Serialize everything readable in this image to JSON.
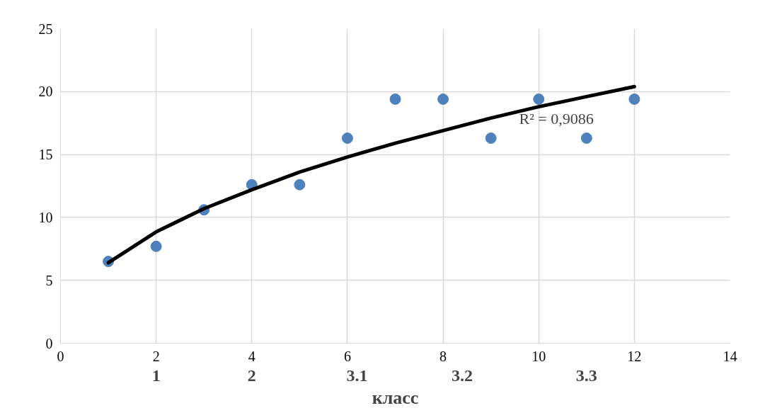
{
  "chart_data": {
    "type": "scatter",
    "xlabel": "класс",
    "xlim": [
      0,
      14
    ],
    "xticks": [
      0,
      2,
      4,
      6,
      8,
      10,
      12,
      14
    ],
    "ylim": [
      0,
      25
    ],
    "yticks": [
      0,
      5,
      10,
      15,
      20,
      25
    ],
    "grid": true,
    "series": [
      {
        "marker": "circle",
        "color": "#4f81bd",
        "x": [
          1,
          2,
          3,
          4,
          5,
          6,
          7,
          8,
          9,
          10,
          11,
          12
        ],
        "values": [
          6.5,
          7.7,
          10.6,
          12.6,
          12.6,
          16.3,
          19.4,
          19.4,
          16.3,
          19.4,
          16.3,
          19.4
        ]
      },
      {
        "type": "line",
        "color": "#000000",
        "x": [
          1,
          2,
          3,
          4,
          5,
          6,
          7,
          8,
          9,
          10,
          11,
          12
        ],
        "values": [
          6.4,
          8.85,
          10.7,
          12.2,
          13.6,
          14.8,
          15.9,
          16.9,
          17.9,
          18.8,
          19.6,
          20.4
        ]
      }
    ],
    "annotations": [
      "R² = 0,9086",
      "1",
      "2",
      "3.1",
      "3.2",
      "3.3"
    ]
  }
}
